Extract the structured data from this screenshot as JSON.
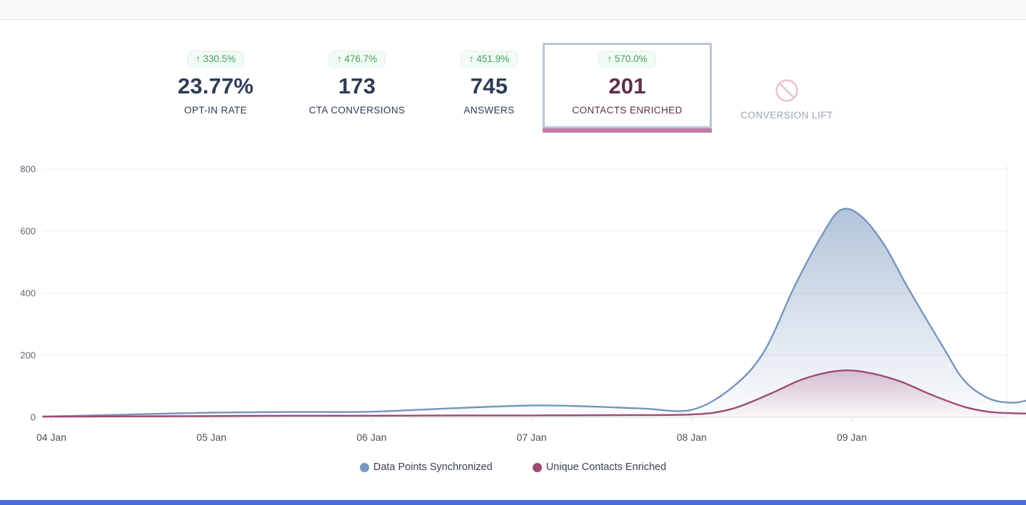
{
  "topbar": {
    "visible": true
  },
  "metrics": {
    "cards": [
      {
        "badge": "↑ 330.5%",
        "value": "23.77%",
        "label": "OPT-IN RATE",
        "selected": false
      },
      {
        "badge": "↑ 476.7%",
        "value": "173",
        "label": "CTA CONVERSIONS",
        "selected": false
      },
      {
        "badge": "↑ 451.9%",
        "value": "745",
        "label": "ANSWERS",
        "selected": false
      },
      {
        "badge": "↑ 570.0%",
        "value": "201",
        "label": "CONTACTS ENRICHED",
        "selected": true
      },
      {
        "icon": "blocked-icon",
        "label": "CONVERSION LIFT",
        "disabled": true
      }
    ],
    "colors": {
      "badge_text": "#3fa05f",
      "badge_bg": "#f2faf4",
      "value": "#2e3b55",
      "selected_value": "#5d2f48",
      "selected_border": "#b7c6d8",
      "selected_accent": "#c278a3",
      "disabled_label": "#9aa3b3",
      "blocked_icon": "#e8c4d4",
      "footer": "#4b6bdb"
    }
  },
  "chart_data": {
    "type": "area",
    "title": "",
    "xlabel": "",
    "ylabel": "",
    "x_tick_labels": [
      "04 Jan",
      "05 Jan",
      "06 Jan",
      "07 Jan",
      "08 Jan",
      "09 Jan"
    ],
    "y_ticks": [
      0,
      200,
      400,
      600,
      800
    ],
    "ylim": [
      0,
      800
    ],
    "x_range_days": [
      -0.04,
      6.12
    ],
    "grid": "horizontal",
    "legend_position": "bottom-center",
    "series": [
      {
        "name": "Data Points Synchronized",
        "color": "#7795bd",
        "fill_top_opacity": 0.55,
        "points": [
          [
            -0.04,
            3
          ],
          [
            0,
            3
          ],
          [
            0.5,
            9
          ],
          [
            1,
            15
          ],
          [
            1.5,
            17
          ],
          [
            2,
            18
          ],
          [
            2.5,
            29
          ],
          [
            3,
            38
          ],
          [
            3.35,
            35
          ],
          [
            3.7,
            28
          ],
          [
            4,
            24
          ],
          [
            4.25,
            95
          ],
          [
            4.45,
            210
          ],
          [
            4.65,
            430
          ],
          [
            4.82,
            592
          ],
          [
            4.93,
            668
          ],
          [
            5.05,
            652
          ],
          [
            5.2,
            558
          ],
          [
            5.35,
            418
          ],
          [
            5.58,
            218
          ],
          [
            5.7,
            120
          ],
          [
            5.85,
            62
          ],
          [
            6,
            47
          ],
          [
            6.12,
            57
          ]
        ]
      },
      {
        "name": "Unique Contacts Enriched",
        "color": "#9d4a73",
        "fill_top_opacity": 0.3,
        "points": [
          [
            -0.04,
            2
          ],
          [
            0,
            2
          ],
          [
            0.5,
            3
          ],
          [
            1,
            4
          ],
          [
            1.5,
            5
          ],
          [
            2,
            5
          ],
          [
            2.5,
            6
          ],
          [
            3,
            6
          ],
          [
            3.5,
            7
          ],
          [
            4,
            9
          ],
          [
            4.25,
            27
          ],
          [
            4.5,
            78
          ],
          [
            4.7,
            124
          ],
          [
            4.92,
            150
          ],
          [
            5.1,
            144
          ],
          [
            5.3,
            116
          ],
          [
            5.5,
            72
          ],
          [
            5.7,
            34
          ],
          [
            5.85,
            18
          ],
          [
            6,
            13
          ],
          [
            6.12,
            12
          ]
        ]
      }
    ]
  }
}
